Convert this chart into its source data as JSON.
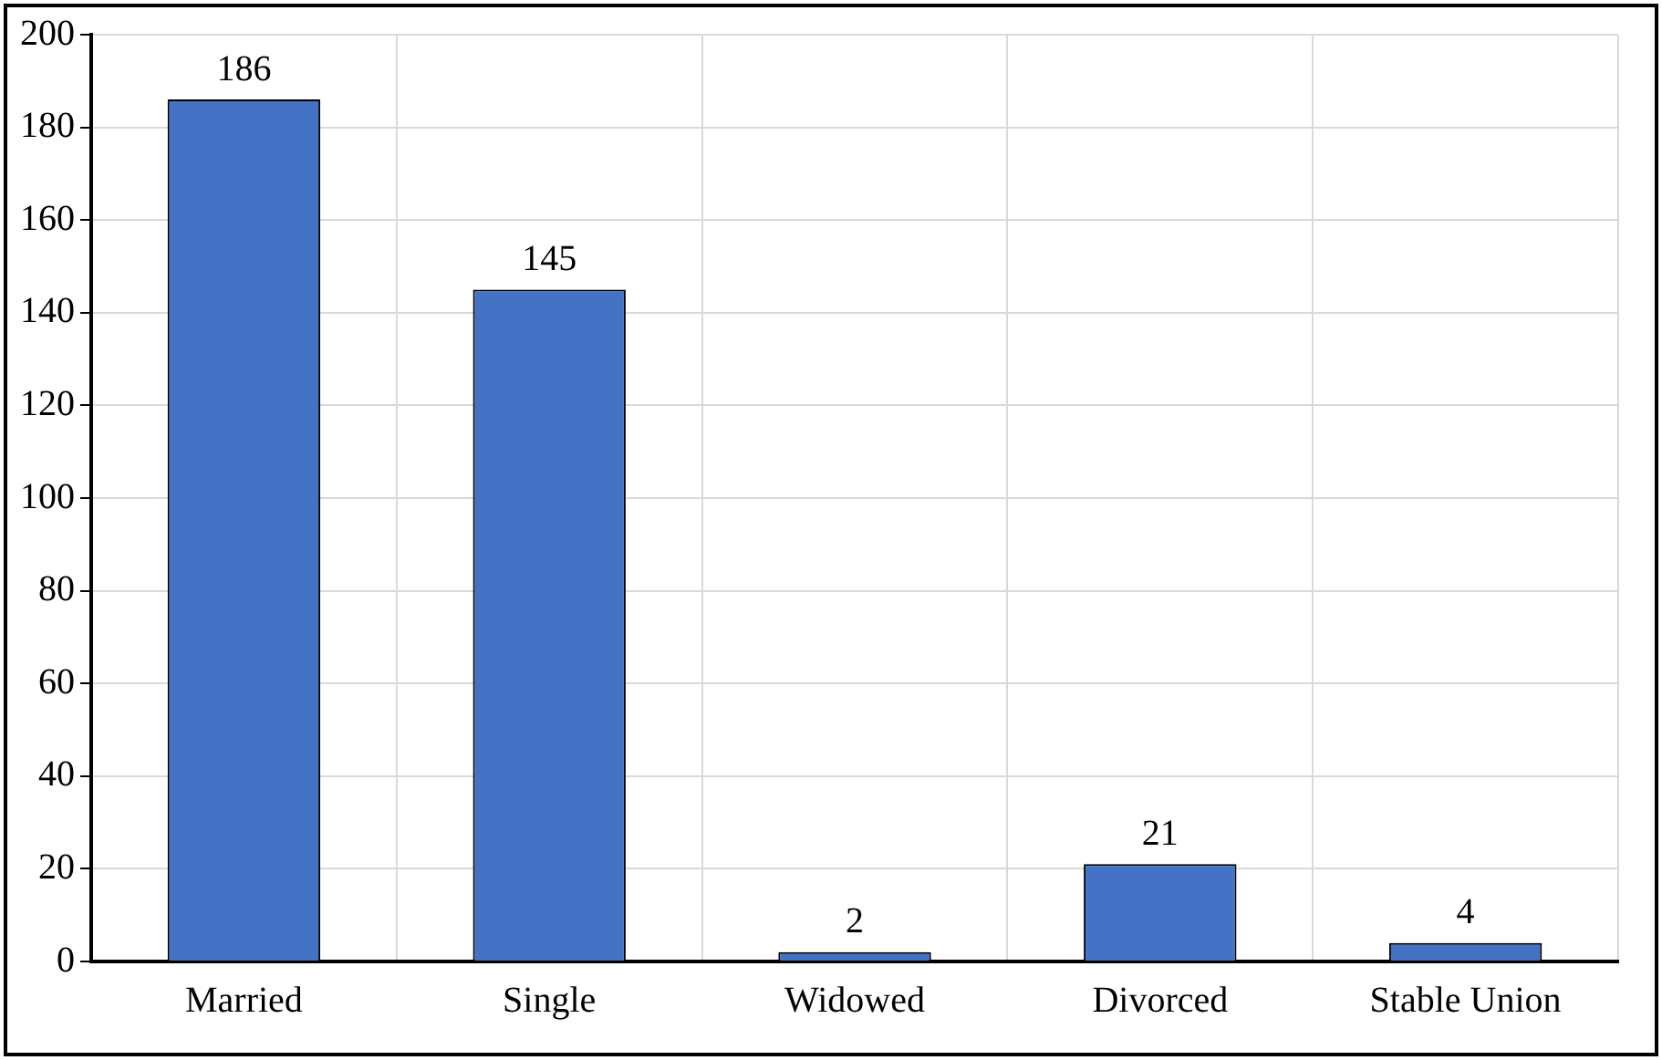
{
  "chart_data": {
    "type": "bar",
    "categories": [
      "Married",
      "Single",
      "Widowed",
      "Divorced",
      "Stable Union"
    ],
    "values": [
      186,
      145,
      2,
      21,
      4
    ],
    "color": "#4472c4",
    "ylim": [
      0,
      200
    ],
    "yticks": [
      0,
      20,
      40,
      60,
      80,
      100,
      120,
      140,
      160,
      180,
      200
    ],
    "grid": true,
    "data_labels": true,
    "legend": false
  }
}
